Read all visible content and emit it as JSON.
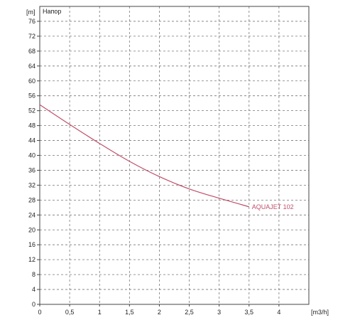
{
  "chart_data": {
    "type": "line",
    "title": "",
    "ylabel": "[m]",
    "ylabel_extra": "Напор",
    "xlabel": "[m3/h]",
    "xlim": [
      0,
      4.5
    ],
    "ylim": [
      0,
      80
    ],
    "x_ticks": [
      0,
      0.5,
      1,
      1.5,
      2,
      2.5,
      3,
      3.5,
      4
    ],
    "x_tick_labels": [
      "0",
      "0,5",
      "1",
      "1,5",
      "2",
      "2,5",
      "3",
      "3,5",
      "4"
    ],
    "y_ticks": [
      0,
      4,
      8,
      12,
      16,
      20,
      24,
      28,
      32,
      36,
      40,
      44,
      48,
      52,
      56,
      60,
      64,
      68,
      72,
      76
    ],
    "grid": true,
    "grid_style": "dashed",
    "series": [
      {
        "name": "AQUAJET 102",
        "color": "#c0506a",
        "x": [
          0,
          0.5,
          1,
          1.5,
          2,
          2.5,
          3,
          3.5
        ],
        "y": [
          53.6,
          48.3,
          43.2,
          38.4,
          34.3,
          31.0,
          28.5,
          26.2
        ]
      }
    ]
  }
}
